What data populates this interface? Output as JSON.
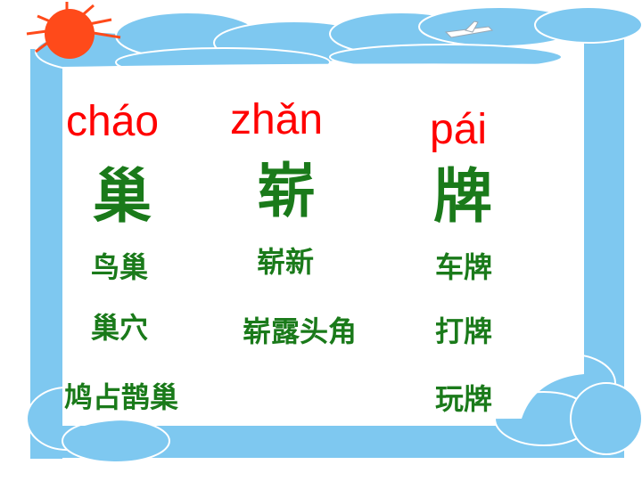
{
  "colors": {
    "pinyin": "#ff0000",
    "character": "#1a7a1a",
    "frame_blue": "#7ec8f0",
    "sun": "#ff4a1a"
  },
  "decorations": [
    "sun-icon",
    "cloud-icon",
    "airplane-icon"
  ],
  "columns": [
    {
      "pinyin": "cháo",
      "character": "巢",
      "words": [
        "鸟巢",
        "巢穴",
        "鸠占鹊巢"
      ]
    },
    {
      "pinyin": "zhǎn",
      "character": "崭",
      "words": [
        "崭新",
        "崭露头角"
      ]
    },
    {
      "pinyin": "pái",
      "character": "牌",
      "words": [
        "车牌",
        "打牌",
        "玩牌"
      ]
    }
  ]
}
